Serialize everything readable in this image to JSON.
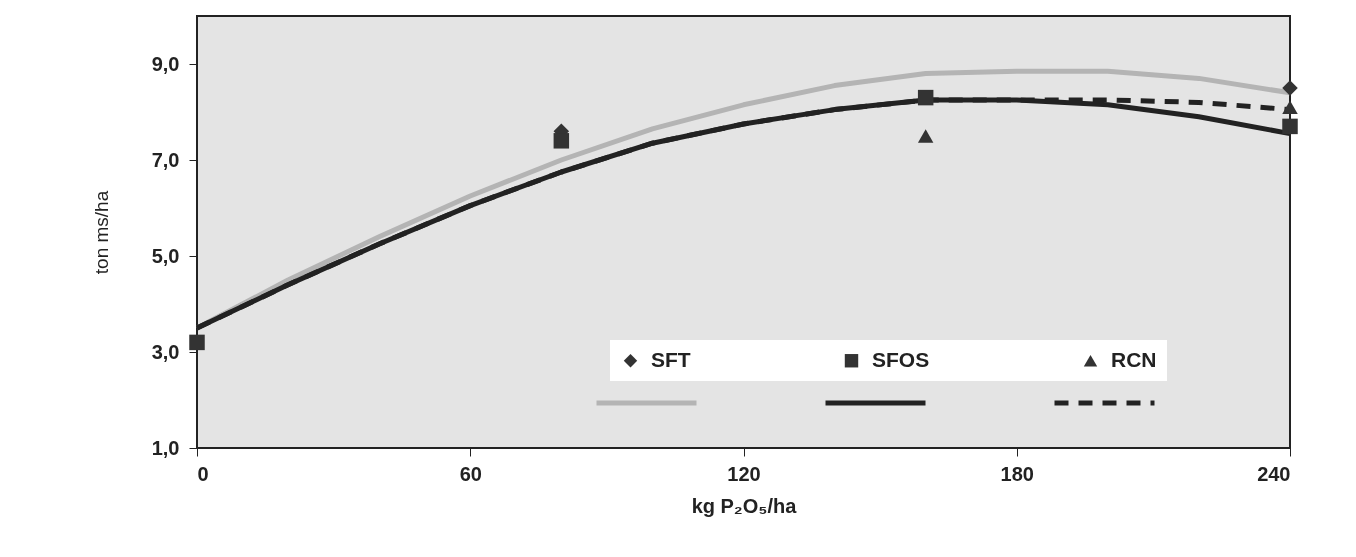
{
  "chart_data": {
    "type": "scatter",
    "xlabel": "kg P₂O₅/ha",
    "ylabel": "ton ms/ha",
    "x": [
      0,
      80,
      160,
      240
    ],
    "xlim": [
      0,
      240
    ],
    "xticks": [
      0,
      60,
      120,
      180,
      240
    ],
    "ylim": [
      1,
      10
    ],
    "yticks": [
      {
        "value": 1,
        "label": "1,0"
      },
      {
        "value": 3,
        "label": "3,0"
      },
      {
        "value": 5,
        "label": "5,0"
      },
      {
        "value": 7,
        "label": "7,0"
      },
      {
        "value": 9,
        "label": "9,0"
      }
    ],
    "legend": "bottom right",
    "series": [
      {
        "name": "SFT",
        "marker": "diamond",
        "color": "#333333",
        "values": [
          null,
          7.6,
          null,
          8.5
        ]
      },
      {
        "name": "SFOS",
        "marker": "square",
        "color": "#333333",
        "values": [
          3.2,
          7.4,
          8.3,
          7.7
        ]
      },
      {
        "name": "RCN",
        "marker": "triangle",
        "color": "#333333",
        "values": [
          null,
          null,
          7.5,
          8.1
        ]
      },
      {
        "type": "line",
        "color": "#b4b4b4",
        "line_style": "solid",
        "x": [
          0,
          20,
          40,
          60,
          80,
          100,
          120,
          140,
          160,
          180,
          200,
          220,
          240
        ],
        "values": [
          3.5,
          4.5,
          5.4,
          6.25,
          7.0,
          7.65,
          8.15,
          8.55,
          8.8,
          8.85,
          8.85,
          8.7,
          8.4
        ]
      },
      {
        "type": "line",
        "color": "#222222",
        "line_style": "solid",
        "x": [
          0,
          20,
          40,
          60,
          80,
          100,
          120,
          140,
          160,
          180,
          200,
          220,
          240
        ],
        "values": [
          3.5,
          4.4,
          5.25,
          6.05,
          6.75,
          7.35,
          7.75,
          8.05,
          8.25,
          8.25,
          8.15,
          7.9,
          7.55
        ]
      },
      {
        "type": "line",
        "color": "#222222",
        "line_style": "dashed",
        "x": [
          0,
          20,
          40,
          60,
          80,
          100,
          120,
          140,
          160,
          180,
          200,
          220,
          240
        ],
        "values": [
          3.5,
          4.4,
          5.25,
          6.05,
          6.75,
          7.35,
          7.75,
          8.05,
          8.25,
          8.25,
          8.25,
          8.2,
          8.05
        ]
      }
    ]
  }
}
